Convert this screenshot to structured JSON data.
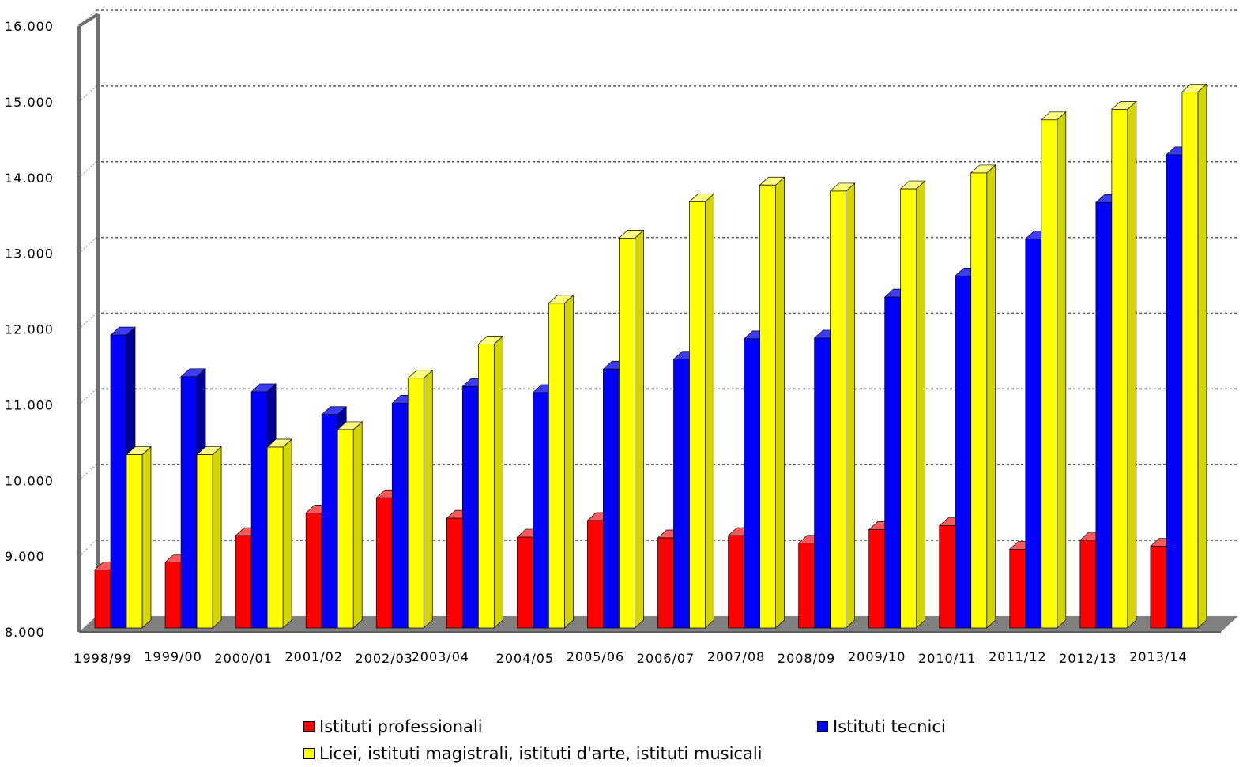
{
  "chart_data": {
    "type": "bar",
    "title": "",
    "xlabel": "",
    "ylabel": "",
    "ylim": [
      8000,
      16000
    ],
    "grid": true,
    "legend_position": "bottom",
    "y_ticks": [
      "8.000",
      "9.000",
      "10.000",
      "11.000",
      "12.000",
      "13.000",
      "14.000",
      "15.000",
      "16.000"
    ],
    "categories": [
      "1998/99",
      "1999/00",
      "2000/01",
      "2001/02",
      "2002/03",
      "2003/04",
      "2004/05",
      "2005/06",
      "2006/07",
      "2007/08",
      "2008/09",
      "2009/10",
      "2010/11",
      "2011/12",
      "2012/13",
      "2013/14"
    ],
    "series": [
      {
        "name": "Istituti professionali",
        "color": "#ff0000",
        "values": [
          8800,
          8900,
          9250,
          9550,
          9750,
          9480,
          9230,
          9450,
          9220,
          9250,
          9150,
          9330,
          9380,
          9070,
          9190,
          9110
        ]
      },
      {
        "name": "Istituti tecnici",
        "color": "#0000ff",
        "values": [
          11900,
          11350,
          11150,
          10850,
          11000,
          11220,
          11140,
          11450,
          11580,
          11850,
          11860,
          12400,
          12680,
          13170,
          13650,
          14280
        ]
      },
      {
        "name": "Licei, istituti magistrali, istituti d'arte, istituti musicali",
        "color": "#ffff00",
        "values": [
          10320,
          10320,
          10420,
          10650,
          11330,
          11780,
          12320,
          13180,
          13660,
          13880,
          13800,
          13830,
          14040,
          14740,
          14880,
          15110
        ]
      }
    ]
  }
}
